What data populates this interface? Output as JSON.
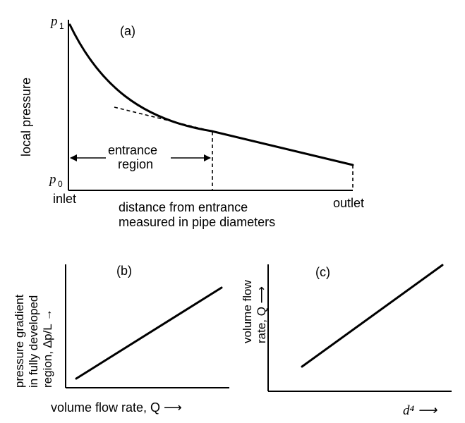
{
  "panel_a": {
    "label": "(a)",
    "y_top_label": "p",
    "y_top_sub": "1",
    "y_bottom_label": "p",
    "y_bottom_sub": "0",
    "y_axis_label": "local pressure",
    "x_left_label": "inlet",
    "x_right_label": "outlet",
    "x_axis_line1": "distance from entrance",
    "x_axis_line2": "measured in pipe diameters",
    "region_line1": "entrance",
    "region_line2": "region"
  },
  "panel_b": {
    "label": "(b)",
    "y_line1": "pressure gradient",
    "y_line2": "in fully developed",
    "y_line3": "region, ∆p/L  →",
    "x_label": "volume flow rate, Q  ⟶"
  },
  "panel_c": {
    "label": "(c)",
    "y_line1": "volume flow",
    "y_line2": "rate, Q  ⟶",
    "x_label": "d⁴  ⟶"
  }
}
